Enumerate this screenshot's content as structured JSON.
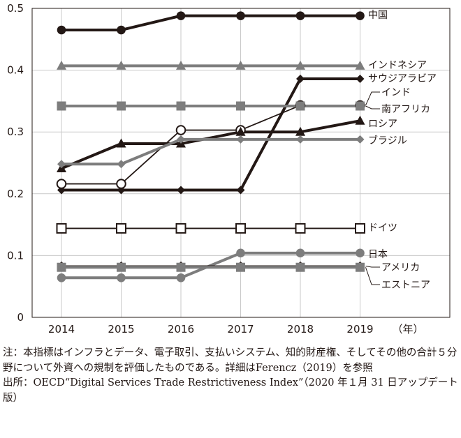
{
  "chart_data": {
    "type": "line",
    "x": [
      "2014",
      "2015",
      "2016",
      "2017",
      "2018",
      "2019"
    ],
    "x_unit": "（年）",
    "ylim": [
      0,
      0.5
    ],
    "yticks": [
      "0",
      "0.1",
      "0.2",
      "0.3",
      "0.4",
      "0.5"
    ],
    "grid": true,
    "series": [
      {
        "name": "中国",
        "values": [
          0.465,
          0.465,
          0.488,
          0.488,
          0.488,
          0.488
        ],
        "color": "#231815",
        "marker": "dot"
      },
      {
        "name": "インドネシア",
        "values": [
          0.407,
          0.407,
          0.407,
          0.407,
          0.407,
          0.407
        ],
        "color": "#7d7d7d",
        "marker": "triangle"
      },
      {
        "name": "サウジアラビア",
        "values": [
          0.206,
          0.206,
          0.206,
          0.206,
          0.386,
          0.386
        ],
        "color": "#231815",
        "marker": "diamond"
      },
      {
        "name": "インド",
        "values": [
          0.216,
          0.216,
          0.303,
          0.303,
          0.343,
          0.343
        ],
        "color": "#231815",
        "marker": "circle-open"
      },
      {
        "name": "南アフリカ",
        "values": [
          0.342,
          0.342,
          0.342,
          0.342,
          0.342,
          0.342
        ],
        "color": "#7d7d7d",
        "marker": "square"
      },
      {
        "name": "ロシア",
        "values": [
          0.241,
          0.281,
          0.281,
          0.3,
          0.3,
          0.318
        ],
        "color": "#231815",
        "marker": "triangle"
      },
      {
        "name": "ブラジル",
        "values": [
          0.248,
          0.248,
          0.288,
          0.288,
          0.288,
          0.288
        ],
        "color": "#7d7d7d",
        "marker": "diamond"
      },
      {
        "name": "ドイツ",
        "values": [
          0.144,
          0.144,
          0.144,
          0.144,
          0.144,
          0.144
        ],
        "color": "#231815",
        "marker": "square-open"
      },
      {
        "name": "日本",
        "values": [
          0.064,
          0.064,
          0.064,
          0.104,
          0.104,
          0.104
        ],
        "color": "#7d7d7d",
        "marker": "dot"
      },
      {
        "name": "アメリカ",
        "values": [
          0.083,
          0.083,
          0.083,
          0.083,
          0.083,
          0.083
        ],
        "color": "#231815",
        "marker": "diamond-open"
      },
      {
        "name": "エストニア",
        "values": [
          0.081,
          0.081,
          0.081,
          0.081,
          0.081,
          0.081
        ],
        "color": "#7d7d7d",
        "marker": "square"
      }
    ]
  },
  "notes": {
    "note": "注：本指標はインフラとデータ、電子取引、支払いシステム、知的財産権、そしてその他の合計５分野について外資への規制を評価したものである。詳細はFerencz（2019）を参照",
    "source": "出所：OECD“Digital Services Trade Restrictiveness Index”（2020 年１月 31 日アップデート版）"
  }
}
